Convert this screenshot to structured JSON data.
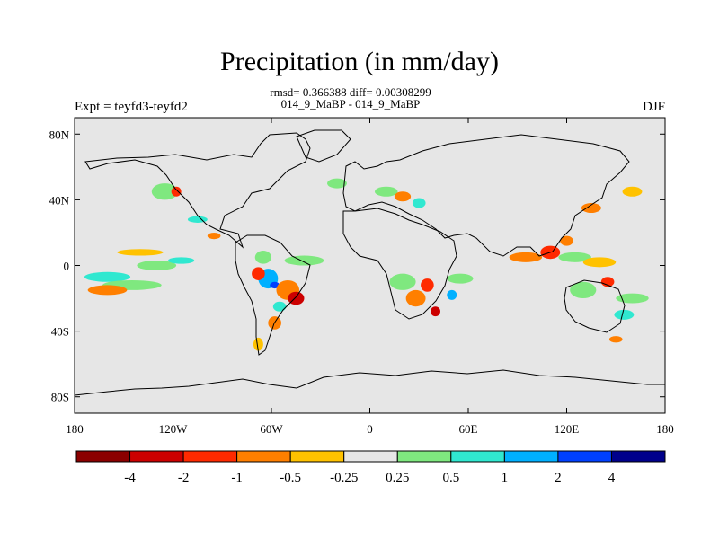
{
  "title": "Precipitation (in mm/day)",
  "stats_line": "rmsd= 0.366388 diff= 0.00308299",
  "subtitle": "014_9_MaBP - 014_9_MaBP",
  "left_label": "Expt = teyfd3-teyfd2",
  "right_label": "DJF",
  "map": {
    "background_color": "#e6e6e6",
    "lon_range": [
      -180,
      180
    ],
    "lat_range": [
      -90,
      90
    ],
    "lon_ticks": [
      {
        "value": -180,
        "label": "180"
      },
      {
        "value": -120,
        "label": "120W"
      },
      {
        "value": -60,
        "label": "60W"
      },
      {
        "value": 0,
        "label": "0"
      },
      {
        "value": 60,
        "label": "60E"
      },
      {
        "value": 120,
        "label": "120E"
      },
      {
        "value": 180,
        "label": "180"
      }
    ],
    "lat_ticks": [
      {
        "value": 80,
        "label": "80N"
      },
      {
        "value": 40,
        "label": "40N"
      },
      {
        "value": 0,
        "label": "0"
      },
      {
        "value": -40,
        "label": "40S"
      },
      {
        "value": -80,
        "label": "80S"
      }
    ]
  },
  "colorbar": {
    "colors": [
      "#8b0000",
      "#cc0000",
      "#ff2a00",
      "#ff7f00",
      "#ffc200",
      "#e6e6e6",
      "#7fe87f",
      "#30e8d0",
      "#00b0ff",
      "#0040ff",
      "#00008b"
    ],
    "labels": [
      "-4",
      "-2",
      "-1",
      "-0.5",
      "-0.25",
      "0.25",
      "0.5",
      "1",
      "2",
      "4"
    ]
  },
  "anomalies": [
    {
      "lon": -160,
      "lat": -7,
      "rx": 14,
      "ry": 3,
      "color": "#30e8d0"
    },
    {
      "lon": -145,
      "lat": -12,
      "rx": 18,
      "ry": 3,
      "color": "#7fe87f"
    },
    {
      "lon": -130,
      "lat": 0,
      "rx": 12,
      "ry": 3,
      "color": "#7fe87f"
    },
    {
      "lon": -115,
      "lat": 3,
      "rx": 8,
      "ry": 2,
      "color": "#30e8d0"
    },
    {
      "lon": -160,
      "lat": -15,
      "rx": 12,
      "ry": 3,
      "color": "#ff7f00"
    },
    {
      "lon": -140,
      "lat": 8,
      "rx": 14,
      "ry": 2,
      "color": "#ffc200"
    },
    {
      "lon": -125,
      "lat": 45,
      "rx": 8,
      "ry": 5,
      "color": "#7fe87f"
    },
    {
      "lon": -118,
      "lat": 45,
      "rx": 3,
      "ry": 3,
      "color": "#ff2a00"
    },
    {
      "lon": -105,
      "lat": 28,
      "rx": 6,
      "ry": 2,
      "color": "#30e8d0"
    },
    {
      "lon": -95,
      "lat": 18,
      "rx": 4,
      "ry": 2,
      "color": "#ff7f00"
    },
    {
      "lon": -62,
      "lat": -8,
      "rx": 6,
      "ry": 6,
      "color": "#00b0ff"
    },
    {
      "lon": -58,
      "lat": -12,
      "rx": 3,
      "ry": 2,
      "color": "#0040ff"
    },
    {
      "lon": -68,
      "lat": -5,
      "rx": 4,
      "ry": 4,
      "color": "#ff2a00"
    },
    {
      "lon": -50,
      "lat": -15,
      "rx": 7,
      "ry": 6,
      "color": "#ff7f00"
    },
    {
      "lon": -45,
      "lat": -20,
      "rx": 5,
      "ry": 4,
      "color": "#cc0000"
    },
    {
      "lon": -55,
      "lat": -25,
      "rx": 4,
      "ry": 3,
      "color": "#30e8d0"
    },
    {
      "lon": -65,
      "lat": 5,
      "rx": 5,
      "ry": 4,
      "color": "#7fe87f"
    },
    {
      "lon": -40,
      "lat": 3,
      "rx": 12,
      "ry": 3,
      "color": "#7fe87f"
    },
    {
      "lon": -58,
      "lat": -35,
      "rx": 4,
      "ry": 4,
      "color": "#ff7f00"
    },
    {
      "lon": -68,
      "lat": -48,
      "rx": 3,
      "ry": 4,
      "color": "#ffc200"
    },
    {
      "lon": 20,
      "lat": -10,
      "rx": 8,
      "ry": 5,
      "color": "#7fe87f"
    },
    {
      "lon": 28,
      "lat": -20,
      "rx": 6,
      "ry": 5,
      "color": "#ff7f00"
    },
    {
      "lon": 35,
      "lat": -12,
      "rx": 4,
      "ry": 4,
      "color": "#ff2a00"
    },
    {
      "lon": 40,
      "lat": -28,
      "rx": 3,
      "ry": 3,
      "color": "#cc0000"
    },
    {
      "lon": 55,
      "lat": -8,
      "rx": 8,
      "ry": 3,
      "color": "#7fe87f"
    },
    {
      "lon": 50,
      "lat": -18,
      "rx": 3,
      "ry": 3,
      "color": "#00b0ff"
    },
    {
      "lon": 10,
      "lat": 45,
      "rx": 7,
      "ry": 3,
      "color": "#7fe87f"
    },
    {
      "lon": 20,
      "lat": 42,
      "rx": 5,
      "ry": 3,
      "color": "#ff7f00"
    },
    {
      "lon": 30,
      "lat": 38,
      "rx": 4,
      "ry": 3,
      "color": "#30e8d0"
    },
    {
      "lon": -20,
      "lat": 50,
      "rx": 6,
      "ry": 3,
      "color": "#7fe87f"
    },
    {
      "lon": 95,
      "lat": 5,
      "rx": 10,
      "ry": 3,
      "color": "#ff7f00"
    },
    {
      "lon": 110,
      "lat": 8,
      "rx": 6,
      "ry": 4,
      "color": "#ff2a00"
    },
    {
      "lon": 125,
      "lat": 5,
      "rx": 10,
      "ry": 3,
      "color": "#7fe87f"
    },
    {
      "lon": 140,
      "lat": 2,
      "rx": 10,
      "ry": 3,
      "color": "#ffc200"
    },
    {
      "lon": 120,
      "lat": 15,
      "rx": 4,
      "ry": 3,
      "color": "#ff7f00"
    },
    {
      "lon": 130,
      "lat": -15,
      "rx": 8,
      "ry": 5,
      "color": "#7fe87f"
    },
    {
      "lon": 145,
      "lat": -10,
      "rx": 4,
      "ry": 3,
      "color": "#ff2a00"
    },
    {
      "lon": 160,
      "lat": -20,
      "rx": 10,
      "ry": 3,
      "color": "#7fe87f"
    },
    {
      "lon": 155,
      "lat": -30,
      "rx": 6,
      "ry": 3,
      "color": "#30e8d0"
    },
    {
      "lon": 150,
      "lat": -45,
      "rx": 4,
      "ry": 2,
      "color": "#ff7f00"
    },
    {
      "lon": 135,
      "lat": 35,
      "rx": 6,
      "ry": 3,
      "color": "#ff7f00"
    },
    {
      "lon": 160,
      "lat": 45,
      "rx": 6,
      "ry": 3,
      "color": "#ffc200"
    }
  ]
}
